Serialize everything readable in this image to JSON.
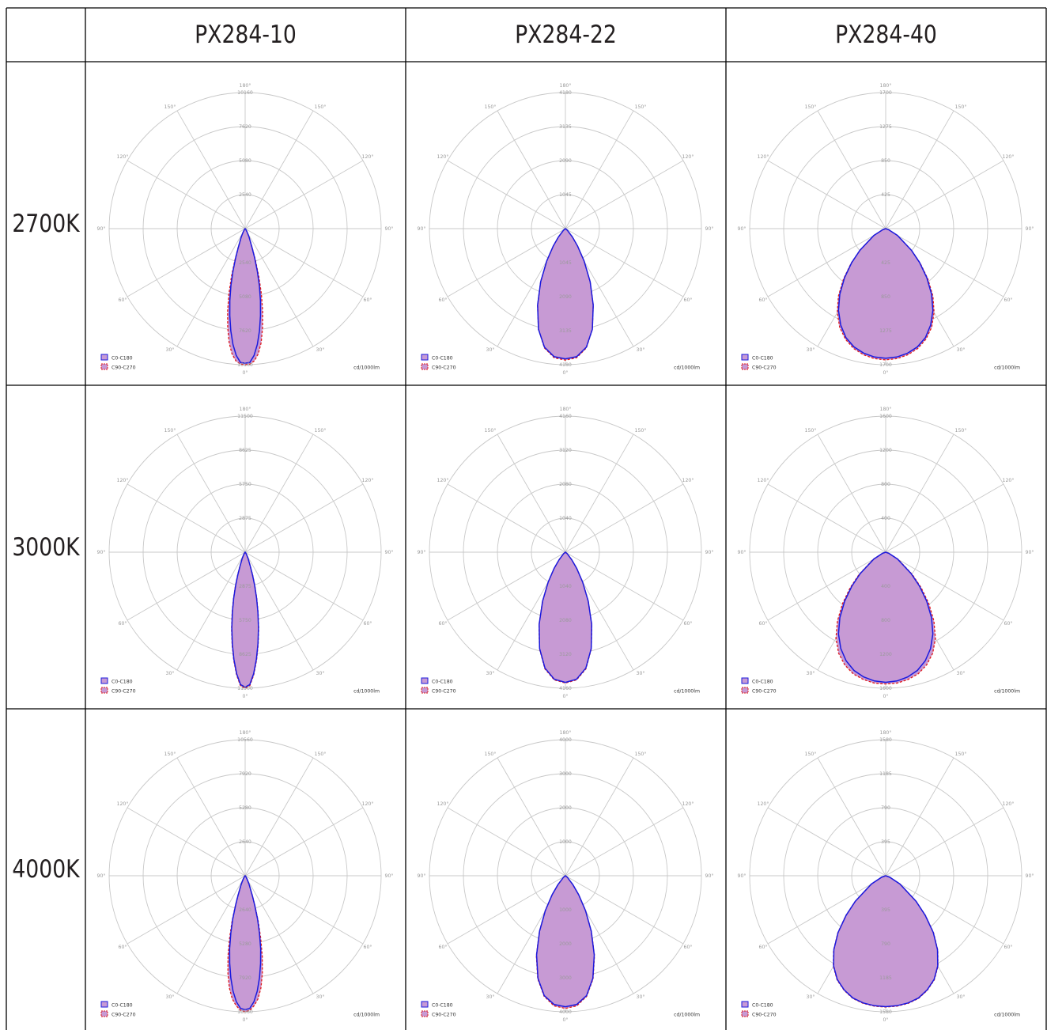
{
  "table": {
    "columns": [
      "PX284-10",
      "PX284-22",
      "PX284-40"
    ],
    "rows": [
      "2700K",
      "3000K",
      "4000K"
    ]
  },
  "legend": {
    "c0": "C0-C180",
    "c90": "C90-C270",
    "unit": "cd/1000lm"
  },
  "colors": {
    "c0_line": "#1a1adf",
    "c90_line": "#e11a1a",
    "fill": "#c79ad4",
    "grid": "#c8c8c8",
    "border": "#000000"
  },
  "chart_data": [
    {
      "type": "polar",
      "row": "2700K",
      "column": "PX284-10",
      "angle_labels": [
        "180°",
        "150°",
        "150°",
        "120°",
        "120°",
        "90°",
        "90°",
        "60°",
        "60°",
        "30°",
        "30°",
        "0°"
      ],
      "radial_ticks": [
        2540,
        5080,
        7620,
        10160
      ],
      "rmax": 10160,
      "angles_deg": [
        0,
        2,
        4,
        6,
        8,
        10,
        12,
        14,
        16,
        18,
        20,
        25,
        30,
        40,
        90
      ],
      "series": [
        {
          "name": "C0-C180",
          "values": [
            10050,
            10000,
            9500,
            8700,
            7700,
            6600,
            5500,
            4400,
            3300,
            2300,
            1500,
            700,
            300,
            80,
            0
          ]
        },
        {
          "name": "C90-C270",
          "values": [
            10160,
            10120,
            9900,
            9400,
            8600,
            7500,
            6300,
            5000,
            3700,
            2500,
            1600,
            700,
            300,
            80,
            0
          ]
        }
      ]
    },
    {
      "type": "polar",
      "row": "2700K",
      "column": "PX284-22",
      "angle_labels": [
        "180°",
        "150°",
        "150°",
        "120°",
        "120°",
        "90°",
        "90°",
        "60°",
        "60°",
        "30°",
        "30°",
        "0°"
      ],
      "radial_ticks": [
        1045,
        2090,
        3135,
        4180
      ],
      "rmax": 4180,
      "angles_deg": [
        0,
        5,
        10,
        15,
        20,
        25,
        30,
        35,
        40,
        50,
        90
      ],
      "series": [
        {
          "name": "C0-C180",
          "values": [
            4000,
            3950,
            3700,
            3200,
            2500,
            1800,
            1150,
            650,
            330,
            80,
            0
          ]
        },
        {
          "name": "C90-C270",
          "values": [
            4040,
            3980,
            3720,
            3200,
            2500,
            1800,
            1150,
            650,
            330,
            80,
            0
          ]
        }
      ]
    },
    {
      "type": "polar",
      "row": "2700K",
      "column": "PX284-40",
      "angle_labels": [
        "180°",
        "150°",
        "150°",
        "120°",
        "120°",
        "90°",
        "90°",
        "60°",
        "60°",
        "30°",
        "30°",
        "0°"
      ],
      "radial_ticks": [
        425,
        850,
        1275,
        1700
      ],
      "rmax": 1700,
      "angles_deg": [
        0,
        5,
        10,
        15,
        20,
        25,
        30,
        35,
        40,
        45,
        50,
        60,
        70,
        90
      ],
      "series": [
        {
          "name": "C0-C180",
          "values": [
            1620,
            1610,
            1580,
            1530,
            1450,
            1330,
            1180,
            1000,
            800,
            600,
            420,
            170,
            40,
            0
          ]
        },
        {
          "name": "C90-C270",
          "values": [
            1640,
            1630,
            1600,
            1550,
            1470,
            1360,
            1210,
            1030,
            820,
            610,
            420,
            170,
            40,
            0
          ]
        }
      ]
    },
    {
      "type": "polar",
      "row": "3000K",
      "column": "PX284-10",
      "angle_labels": [
        "180°",
        "150°",
        "150°",
        "120°",
        "120°",
        "90°",
        "90°",
        "60°",
        "60°",
        "30°",
        "30°",
        "0°"
      ],
      "radial_ticks": [
        2875,
        5750,
        8625,
        11500
      ],
      "rmax": 11500,
      "angles_deg": [
        0,
        2,
        4,
        6,
        8,
        10,
        12,
        14,
        16,
        18,
        20,
        25,
        30,
        40,
        90
      ],
      "series": [
        {
          "name": "C0-C180",
          "values": [
            11400,
            11200,
            10300,
            9100,
            7800,
            6500,
            5200,
            4000,
            2900,
            2000,
            1300,
            600,
            250,
            60,
            0
          ]
        },
        {
          "name": "C90-C270",
          "values": [
            11500,
            11300,
            10400,
            9200,
            7900,
            6600,
            5300,
            4100,
            3000,
            2100,
            1350,
            620,
            260,
            60,
            0
          ]
        }
      ]
    },
    {
      "type": "polar",
      "row": "3000K",
      "column": "PX284-22",
      "angle_labels": [
        "180°",
        "150°",
        "150°",
        "120°",
        "120°",
        "90°",
        "90°",
        "60°",
        "60°",
        "30°",
        "30°",
        "0°"
      ],
      "radial_ticks": [
        1040,
        2080,
        3120,
        4160
      ],
      "rmax": 4160,
      "angles_deg": [
        0,
        5,
        10,
        15,
        20,
        25,
        30,
        35,
        40,
        50,
        90
      ],
      "series": [
        {
          "name": "C0-C180",
          "values": [
            3980,
            3900,
            3600,
            3050,
            2350,
            1650,
            1050,
            600,
            300,
            70,
            0
          ]
        },
        {
          "name": "C90-C270",
          "values": [
            4000,
            3920,
            3620,
            3060,
            2360,
            1660,
            1060,
            600,
            300,
            70,
            0
          ]
        }
      ]
    },
    {
      "type": "polar",
      "row": "3000K",
      "column": "PX284-40",
      "angle_labels": [
        "180°",
        "150°",
        "150°",
        "120°",
        "120°",
        "90°",
        "90°",
        "60°",
        "60°",
        "30°",
        "30°",
        "0°"
      ],
      "radial_ticks": [
        400,
        800,
        1200,
        1600
      ],
      "rmax": 1600,
      "angles_deg": [
        0,
        5,
        10,
        15,
        20,
        25,
        30,
        35,
        40,
        45,
        50,
        60,
        70,
        90
      ],
      "series": [
        {
          "name": "C0-C180",
          "values": [
            1530,
            1520,
            1490,
            1440,
            1360,
            1250,
            1110,
            940,
            750,
            560,
            390,
            160,
            40,
            0
          ]
        },
        {
          "name": "C90-C270",
          "values": [
            1550,
            1545,
            1520,
            1480,
            1410,
            1310,
            1170,
            990,
            790,
            590,
            410,
            170,
            40,
            0
          ]
        }
      ]
    },
    {
      "type": "polar",
      "row": "4000K",
      "column": "PX284-10",
      "angle_labels": [
        "180°",
        "150°",
        "150°",
        "120°",
        "120°",
        "90°",
        "90°",
        "60°",
        "60°",
        "30°",
        "30°",
        "0°"
      ],
      "radial_ticks": [
        2640,
        5280,
        7920,
        10560
      ],
      "rmax": 10560,
      "angles_deg": [
        0,
        2,
        4,
        6,
        8,
        10,
        12,
        14,
        16,
        18,
        20,
        25,
        30,
        40,
        90
      ],
      "series": [
        {
          "name": "C0-C180",
          "values": [
            10400,
            10300,
            9800,
            9000,
            8000,
            6900,
            5800,
            4600,
            3500,
            2400,
            1600,
            700,
            300,
            80,
            0
          ]
        },
        {
          "name": "C90-C270",
          "values": [
            10560,
            10450,
            10100,
            9600,
            8800,
            7700,
            6400,
            5000,
            3700,
            2500,
            1650,
            720,
            300,
            80,
            0
          ]
        }
      ]
    },
    {
      "type": "polar",
      "row": "4000K",
      "column": "PX284-22",
      "angle_labels": [
        "180°",
        "150°",
        "150°",
        "120°",
        "120°",
        "90°",
        "90°",
        "60°",
        "60°",
        "30°",
        "30°",
        "0°"
      ],
      "radial_ticks": [
        1000,
        2000,
        3000,
        4000
      ],
      "rmax": 4000,
      "angles_deg": [
        0,
        5,
        10,
        15,
        20,
        25,
        30,
        35,
        40,
        50,
        90
      ],
      "series": [
        {
          "name": "C0-C180",
          "values": [
            3850,
            3800,
            3580,
            3120,
            2480,
            1800,
            1180,
            680,
            340,
            80,
            0
          ]
        },
        {
          "name": "C90-C270",
          "values": [
            3900,
            3840,
            3600,
            3140,
            2500,
            1810,
            1190,
            680,
            340,
            80,
            0
          ]
        }
      ]
    },
    {
      "type": "polar",
      "row": "4000K",
      "column": "PX284-40",
      "angle_labels": [
        "180°",
        "150°",
        "150°",
        "120°",
        "120°",
        "90°",
        "90°",
        "60°",
        "60°",
        "30°",
        "30°",
        "0°"
      ],
      "radial_ticks": [
        395,
        790,
        1185,
        1580
      ],
      "rmax": 1580,
      "angles_deg": [
        0,
        5,
        10,
        15,
        20,
        25,
        30,
        35,
        40,
        45,
        50,
        60,
        70,
        90
      ],
      "series": [
        {
          "name": "C0-C180",
          "values": [
            1520,
            1515,
            1500,
            1470,
            1410,
            1330,
            1210,
            1050,
            860,
            650,
            460,
            190,
            50,
            0
          ]
        },
        {
          "name": "C90-C270",
          "values": [
            1525,
            1520,
            1505,
            1475,
            1415,
            1335,
            1215,
            1055,
            865,
            655,
            460,
            190,
            50,
            0
          ]
        }
      ]
    }
  ]
}
